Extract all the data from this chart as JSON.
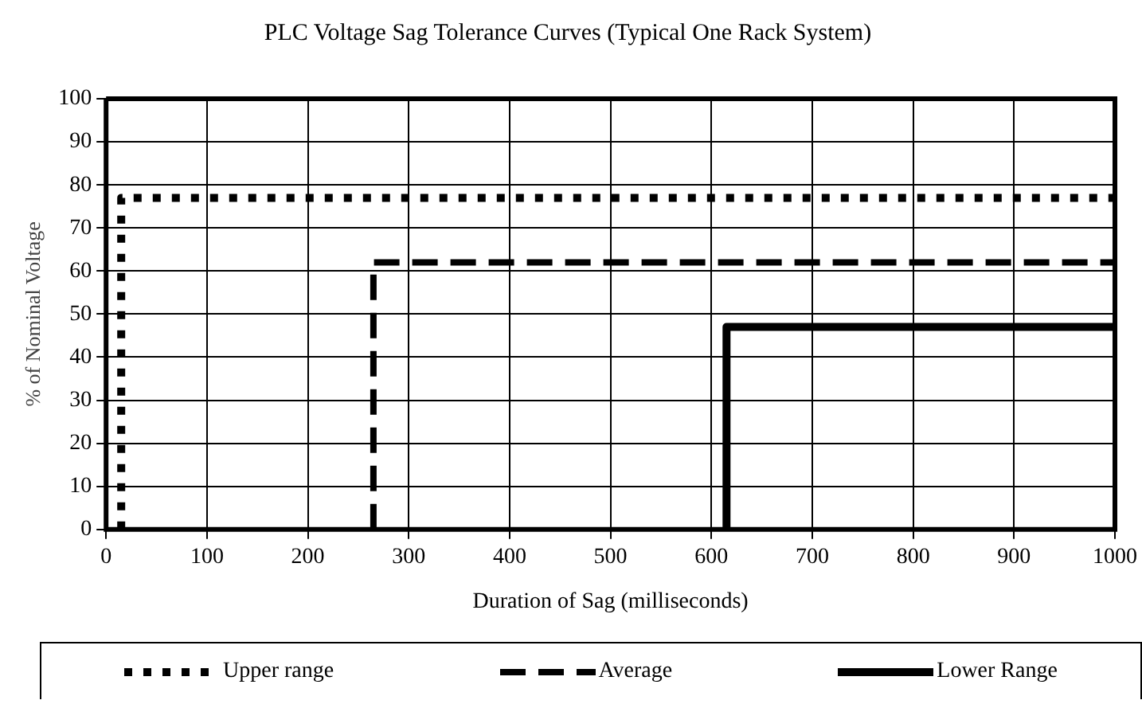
{
  "chart_data": {
    "type": "line",
    "title": "PLC Voltage Sag Tolerance Curves (Typical One Rack System)",
    "xlabel": "Duration of Sag (milliseconds)",
    "ylabel": "% of Nominal Voltage",
    "series": [
      {
        "name": "Upper range",
        "color": "#000000",
        "line_style": "dotted",
        "x": [
          15,
          15,
          1000
        ],
        "values": [
          0,
          77,
          77
        ]
      },
      {
        "name": "Average",
        "color": "#000000",
        "line_style": "dashed",
        "x": [
          265,
          265,
          1000
        ],
        "values": [
          0,
          62,
          62
        ]
      },
      {
        "name": "Lower Range",
        "color": "#000000",
        "line_style": "solid",
        "x": [
          615,
          615,
          1000
        ],
        "values": [
          0,
          47,
          47
        ]
      }
    ],
    "xlim": [
      0,
      1000
    ],
    "xticks": [
      0,
      100,
      200,
      300,
      400,
      500,
      600,
      700,
      800,
      900,
      1000
    ],
    "ylim": [
      0,
      100
    ],
    "yticks": [
      0,
      10,
      20,
      30,
      40,
      50,
      60,
      70,
      80,
      90,
      100
    ],
    "grid": true,
    "legend": "bottom",
    "marker": "none"
  }
}
